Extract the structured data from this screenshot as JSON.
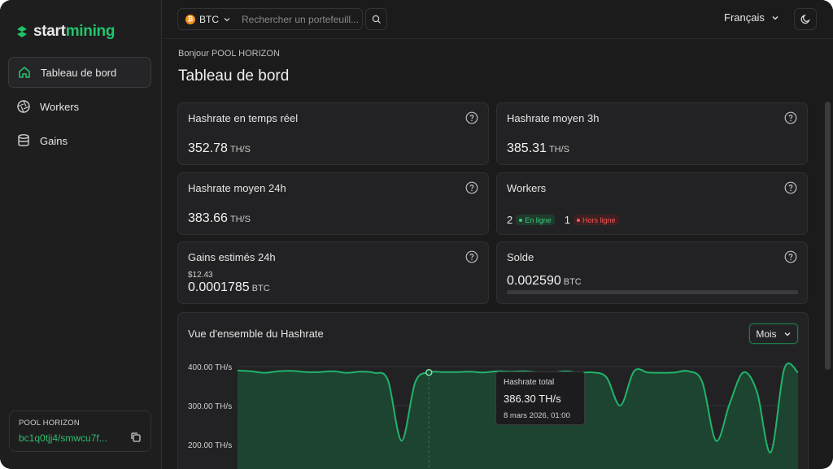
{
  "brand": {
    "part1": "start",
    "part2": "mining"
  },
  "sidebar": {
    "items": [
      {
        "label": "Tableau de bord",
        "icon": "home-icon",
        "active": true
      },
      {
        "label": "Workers",
        "icon": "aperture-icon",
        "active": false
      },
      {
        "label": "Gains",
        "icon": "database-icon",
        "active": false
      }
    ],
    "account": {
      "name": "POOL HORIZON",
      "address": "bc1q0tjj4/smwcu7f..."
    }
  },
  "topbar": {
    "coin": "BTC",
    "search_placeholder": "Rechercher un portefeuill...",
    "language": "Français"
  },
  "page": {
    "greeting": "Bonjour POOL HORIZON",
    "title": "Tableau de bord"
  },
  "cards": {
    "realtime": {
      "title": "Hashrate en temps réel",
      "value": "352.78",
      "unit": "TH/S"
    },
    "avg3h": {
      "title": "Hashrate moyen 3h",
      "value": "385.31",
      "unit": "TH/S"
    },
    "avg24h": {
      "title": "Hashrate moyen 24h",
      "value": "383.66",
      "unit": "TH/S"
    },
    "workers": {
      "title": "Workers",
      "online_count": "2",
      "online_label": "En ligne",
      "offline_count": "1",
      "offline_label": "Hors ligne"
    },
    "earnings": {
      "title": "Gains estimés 24h",
      "usd": "$12.43",
      "value": "0.0001785",
      "unit": "BTC"
    },
    "balance": {
      "title": "Solde",
      "value": "0.002590",
      "unit": "BTC",
      "progress_fraction": 0.0
    }
  },
  "chart": {
    "title": "Vue d'ensemble du Hashrate",
    "period": "Mois",
    "tooltip": {
      "label": "Hashrate total",
      "value": "386.30 TH/s",
      "date": "8 mars 2026, 01:00"
    }
  },
  "chart_data": {
    "type": "area",
    "title": "Vue d'ensemble du Hashrate",
    "ylabel": "",
    "yticks": [
      "400.00 TH/s",
      "300.00 TH/s",
      "200.00 TH/s"
    ],
    "ytick_values": [
      400,
      300,
      200
    ],
    "ylim": [
      150,
      410
    ],
    "series": [
      {
        "values": [
          390,
          388,
          384,
          388,
          389,
          386,
          386,
          388,
          384,
          387,
          384,
          365,
          210,
          360,
          385,
          386,
          386,
          387,
          385,
          388,
          387,
          388,
          385,
          384,
          388,
          384,
          385,
          372,
          300,
          388,
          385,
          384,
          385,
          388,
          360,
          210,
          305,
          385,
          335,
          180,
          395,
          385
        ]
      }
    ],
    "color": "#21b36a",
    "fill": "#1c4a34",
    "grid": true
  }
}
